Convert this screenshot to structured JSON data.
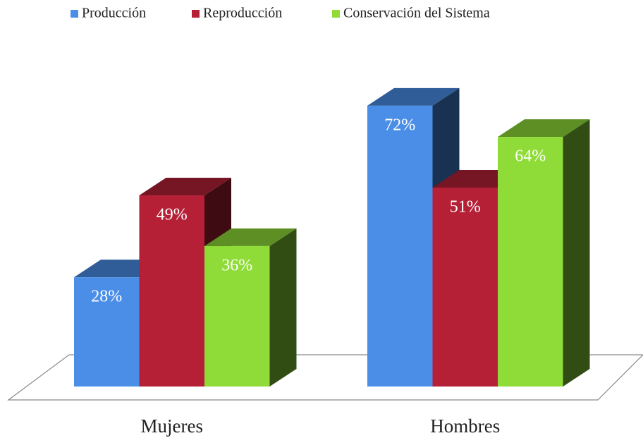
{
  "chart_data": {
    "type": "bar3d",
    "categories": [
      "Mujeres",
      "Hombres"
    ],
    "series": [
      {
        "name": "Producción",
        "color": "#4a8ee8",
        "values": [
          28,
          72
        ],
        "value_labels": [
          "28%",
          "72%"
        ]
      },
      {
        "name": "Reproducción",
        "color": "#b52037",
        "values": [
          49,
          51
        ],
        "value_labels": [
          "49%",
          "51%"
        ]
      },
      {
        "name": "Conservación del Sistema",
        "color": "#8fdc38",
        "values": [
          36,
          64
        ],
        "value_labels": [
          "36%",
          "64%"
        ]
      }
    ],
    "legend": "top"
  }
}
